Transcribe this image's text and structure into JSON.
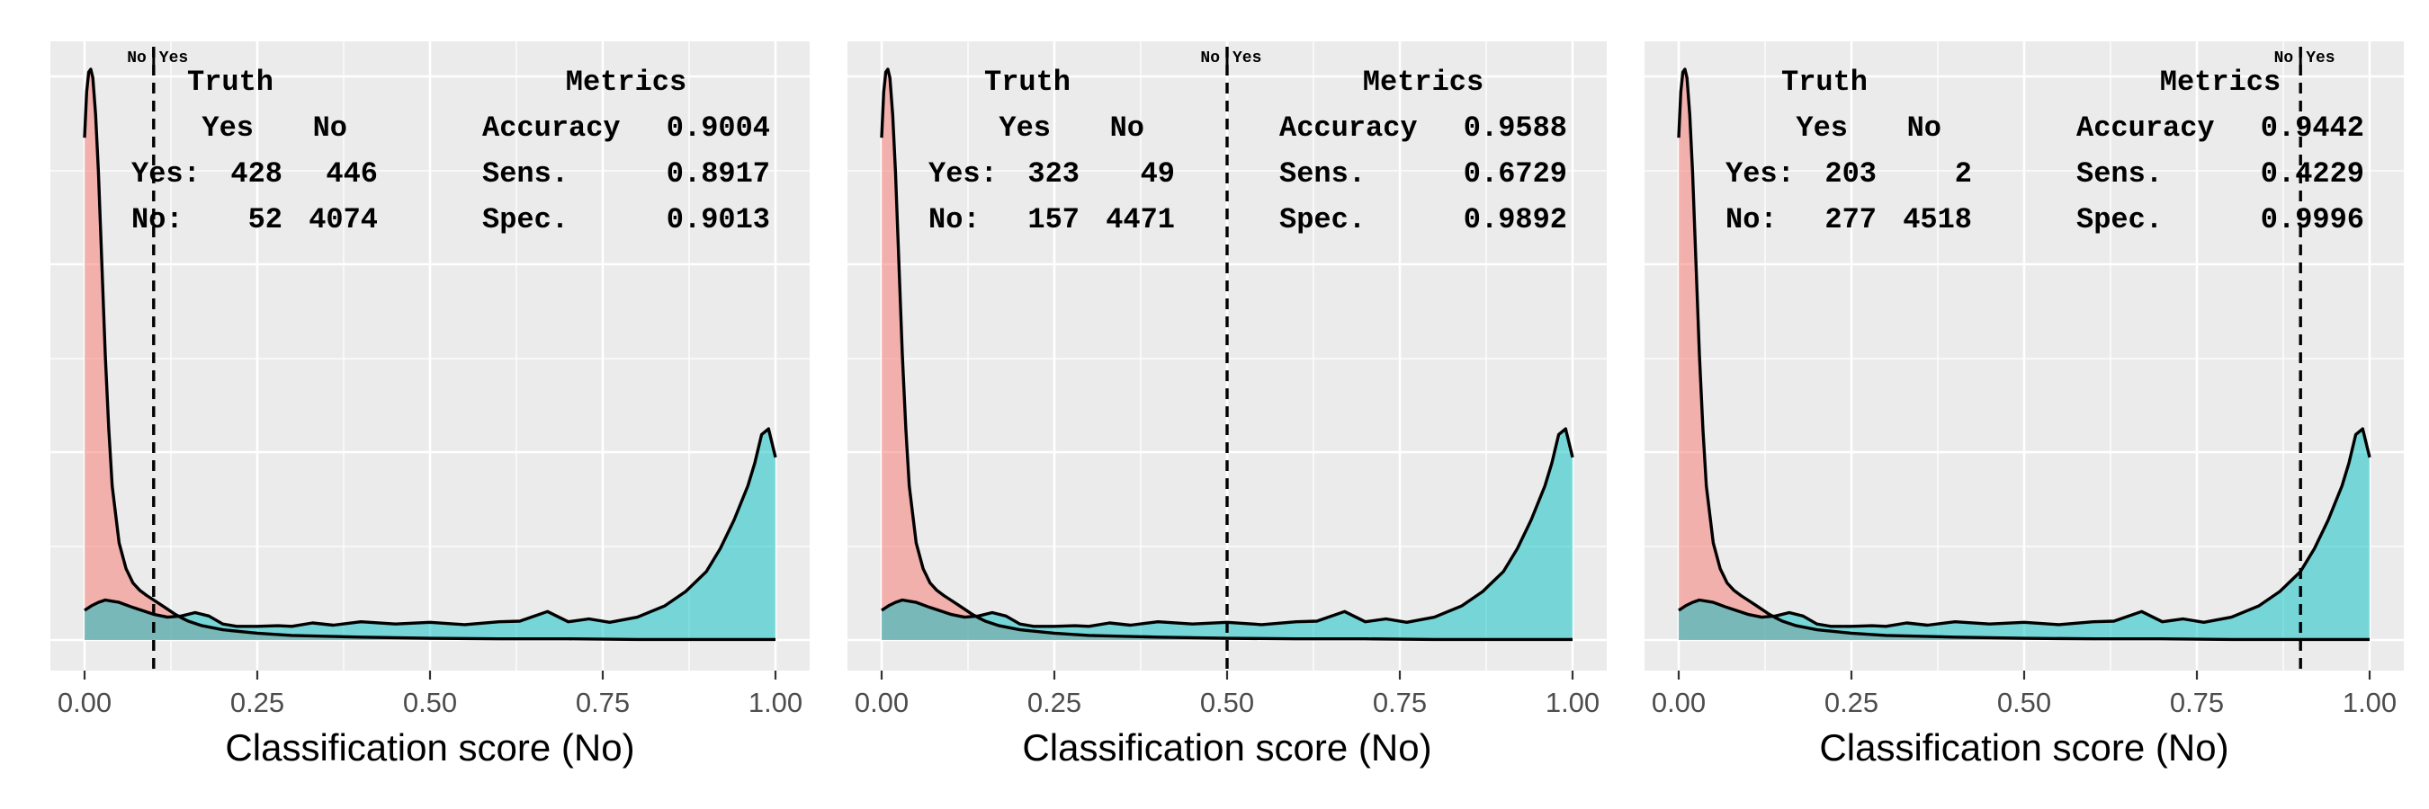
{
  "figure": {
    "xlabel": "Classification score (No)",
    "x_ticks": [
      "0.00",
      "0.25",
      "0.50",
      "0.75",
      "1.00"
    ],
    "panels": [
      {
        "threshold": 0.1,
        "threshold_labels": {
          "left": "No",
          "right": "Yes"
        },
        "confusion": {
          "title": "Truth",
          "columns": [
            "Yes",
            "No"
          ],
          "rows": [
            {
              "label": "Yes:",
              "values": [
                "428",
                "446"
              ]
            },
            {
              "label": "No:",
              "values": [
                "52",
                "4074"
              ]
            }
          ]
        },
        "metrics": {
          "title": "Metrics",
          "rows": [
            {
              "label": "Accuracy",
              "value": "0.9004"
            },
            {
              "label": "Sens.",
              "value": "0.8917"
            },
            {
              "label": "Spec.",
              "value": "0.9013"
            }
          ]
        }
      },
      {
        "threshold": 0.5,
        "threshold_labels": {
          "left": "No",
          "right": "Yes"
        },
        "confusion": {
          "title": "Truth",
          "columns": [
            "Yes",
            "No"
          ],
          "rows": [
            {
              "label": "Yes:",
              "values": [
                "323",
                "49"
              ]
            },
            {
              "label": "No:",
              "values": [
                "157",
                "4471"
              ]
            }
          ]
        },
        "metrics": {
          "title": "Metrics",
          "rows": [
            {
              "label": "Accuracy",
              "value": "0.9588"
            },
            {
              "label": "Sens.",
              "value": "0.6729"
            },
            {
              "label": "Spec.",
              "value": "0.9892"
            }
          ]
        }
      },
      {
        "threshold": 0.9,
        "threshold_labels": {
          "left": "No",
          "right": "Yes"
        },
        "confusion": {
          "title": "Truth",
          "columns": [
            "Yes",
            "No"
          ],
          "rows": [
            {
              "label": "Yes:",
              "values": [
                "203",
                "2"
              ]
            },
            {
              "label": "No:",
              "values": [
                "277",
                "4518"
              ]
            }
          ]
        },
        "metrics": {
          "title": "Metrics",
          "rows": [
            {
              "label": "Accuracy",
              "value": "0.9442"
            },
            {
              "label": "Sens.",
              "value": "0.4229"
            },
            {
              "label": "Spec.",
              "value": "0.9996"
            }
          ]
        }
      }
    ]
  },
  "chart_data": {
    "type": "area",
    "xlabel": "Classification score (No)",
    "xlim": [
      0,
      1
    ],
    "ylabel": "",
    "grid": true,
    "y_axis_labels_shown": false,
    "series": [
      {
        "color": "#F8766D",
        "x": [
          0,
          0.003,
          0.006,
          0.009,
          0.012,
          0.016,
          0.02,
          0.025,
          0.03,
          0.035,
          0.04,
          0.05,
          0.06,
          0.07,
          0.08,
          0.09,
          0.1,
          0.11,
          0.12,
          0.13,
          0.14,
          0.15,
          0.17,
          0.2,
          0.25,
          0.3,
          0.4,
          0.5,
          0.6,
          0.7,
          0.8,
          0.9,
          1.0
        ],
        "y": [
          0.88,
          0.96,
          0.995,
          1.0,
          0.985,
          0.92,
          0.82,
          0.66,
          0.5,
          0.37,
          0.27,
          0.17,
          0.125,
          0.1,
          0.087,
          0.078,
          0.07,
          0.062,
          0.054,
          0.046,
          0.039,
          0.033,
          0.025,
          0.018,
          0.012,
          0.008,
          0.005,
          0.003,
          0.002,
          0.002,
          0.001,
          0.001,
          0.001
        ]
      },
      {
        "color": "#00BFC4",
        "x": [
          0,
          0.01,
          0.02,
          0.03,
          0.05,
          0.07,
          0.1,
          0.12,
          0.14,
          0.16,
          0.18,
          0.2,
          0.22,
          0.25,
          0.28,
          0.3,
          0.33,
          0.36,
          0.4,
          0.45,
          0.5,
          0.55,
          0.6,
          0.63,
          0.67,
          0.7,
          0.73,
          0.76,
          0.8,
          0.84,
          0.87,
          0.9,
          0.92,
          0.94,
          0.96,
          0.97,
          0.98,
          0.99,
          1.0
        ],
        "y": [
          0.052,
          0.06,
          0.066,
          0.07,
          0.066,
          0.057,
          0.045,
          0.04,
          0.042,
          0.048,
          0.042,
          0.028,
          0.024,
          0.024,
          0.025,
          0.024,
          0.03,
          0.026,
          0.032,
          0.028,
          0.031,
          0.027,
          0.032,
          0.033,
          0.05,
          0.032,
          0.037,
          0.031,
          0.04,
          0.06,
          0.085,
          0.12,
          0.16,
          0.21,
          0.27,
          0.31,
          0.36,
          0.37,
          0.32
        ]
      }
    ]
  }
}
